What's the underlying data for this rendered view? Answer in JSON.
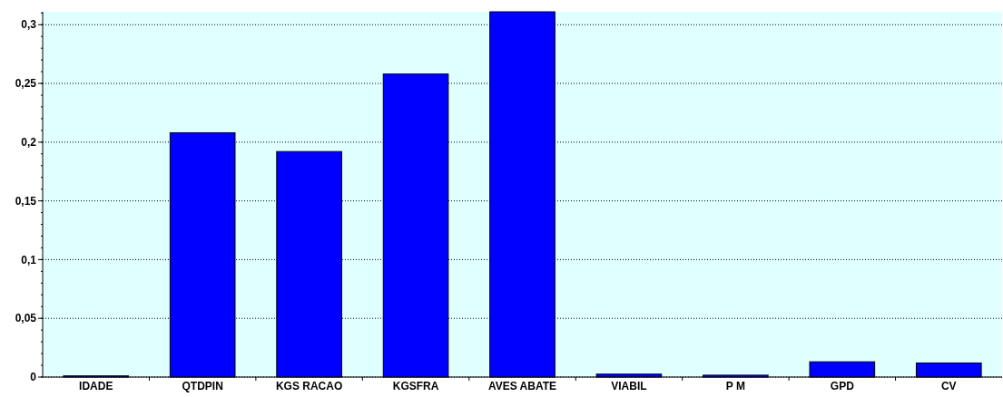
{
  "chart_data": {
    "type": "bar",
    "categories": [
      "IDADE",
      "QTDPIN",
      "KGS RACAO",
      "KGSFRA",
      "AVES ABATE",
      "VIABIL",
      "P M",
      "GPD",
      "CV"
    ],
    "values": [
      0.001,
      0.208,
      0.192,
      0.258,
      0.311,
      0.0025,
      0.0016,
      0.013,
      0.012
    ],
    "color": "#0000ff",
    "ylim": [
      0,
      0.311
    ],
    "yticks": [
      0,
      {
        "value": 0.05,
        "label": "0,05"
      },
      {
        "value": 0.1,
        "label": "0,1"
      },
      {
        "value": 0.15,
        "label": "0,15"
      },
      {
        "value": 0.2,
        "label": "0,2"
      },
      {
        "value": 0.25,
        "label": "0,25"
      },
      {
        "value": 0.3,
        "label": "0,3"
      }
    ],
    "grid": "y"
  }
}
